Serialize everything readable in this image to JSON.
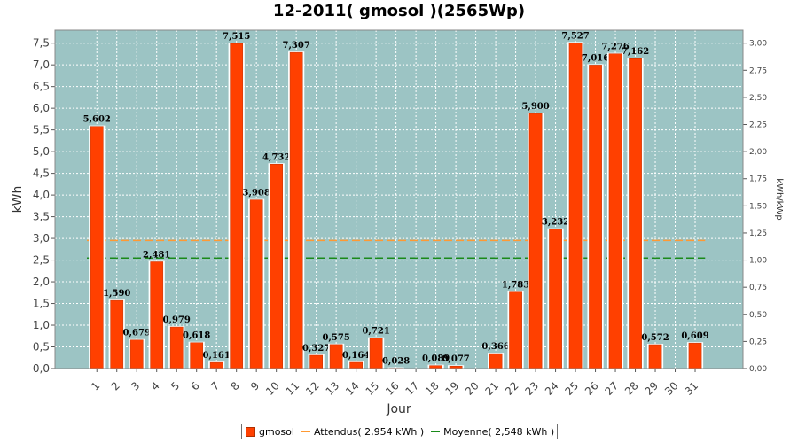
{
  "chart_data": {
    "type": "bar",
    "title": "12-2011( gmosol )(2565Wp)",
    "xlabel": "Jour",
    "ylabel": "kWh",
    "y2label": "kWh/kWp",
    "ylim": [
      0,
      7.8
    ],
    "y2lim": [
      0,
      3.12
    ],
    "yticks": [
      "0,0",
      "0,5",
      "1,0",
      "1,5",
      "2,0",
      "2,5",
      "3,0",
      "3,5",
      "4,0",
      "4,5",
      "5,0",
      "5,5",
      "6,0",
      "6,5",
      "7,0",
      "7,5"
    ],
    "y2ticks": [
      "0,00",
      "0,25",
      "0,50",
      "0,75",
      "1,00",
      "1,25",
      "1,50",
      "1,75",
      "2,00",
      "2,25",
      "2,50",
      "2,75",
      "3,00"
    ],
    "categories": [
      "1",
      "2",
      "3",
      "4",
      "5",
      "6",
      "7",
      "8",
      "9",
      "10",
      "11",
      "12",
      "13",
      "14",
      "15",
      "16",
      "17",
      "18",
      "19",
      "20",
      "21",
      "22",
      "23",
      "24",
      "25",
      "26",
      "27",
      "28",
      "29",
      "30",
      "31"
    ],
    "series": [
      {
        "name": "gmosol",
        "values": [
          5.602,
          1.59,
          0.679,
          2.481,
          0.979,
          0.618,
          0.161,
          7.515,
          3.908,
          4.732,
          7.307,
          0.327,
          0.575,
          0.164,
          0.721,
          0.028,
          0,
          0.089,
          0.077,
          0,
          0.366,
          1.783,
          5.9,
          3.232,
          7.527,
          7.016,
          7.276,
          7.162,
          0.572,
          0,
          0.609
        ],
        "labels": [
          "5,602",
          "1,590",
          "0,679",
          "2,481",
          "0,979",
          "0,618",
          "0,161",
          "7,515",
          "3,908",
          "4,732",
          "7,307",
          "0,327",
          "0,575",
          "0,164",
          "0,721",
          "0,028",
          "",
          "0,089",
          "0,077",
          "",
          "0,366",
          "1,783",
          "5,900",
          "3,232",
          "7,527",
          "7,016",
          "7,276",
          "7,162",
          "0,572",
          "",
          "0,609"
        ]
      }
    ],
    "lines": [
      {
        "name": "Attendus( 2,954 kWh )",
        "value": 2.954,
        "color": "#ff9933",
        "style": "dashed"
      },
      {
        "name": "Moyenne( 2,548 kWh )",
        "value": 2.548,
        "color": "#1a8a1a",
        "style": "dashed"
      }
    ],
    "colors": {
      "bar": "#ff4000",
      "bar_edge": "#c03000",
      "plot_bg": "#9cc4c4",
      "grid": "#ffffff"
    },
    "grid": true,
    "legend_position": "bottom"
  }
}
